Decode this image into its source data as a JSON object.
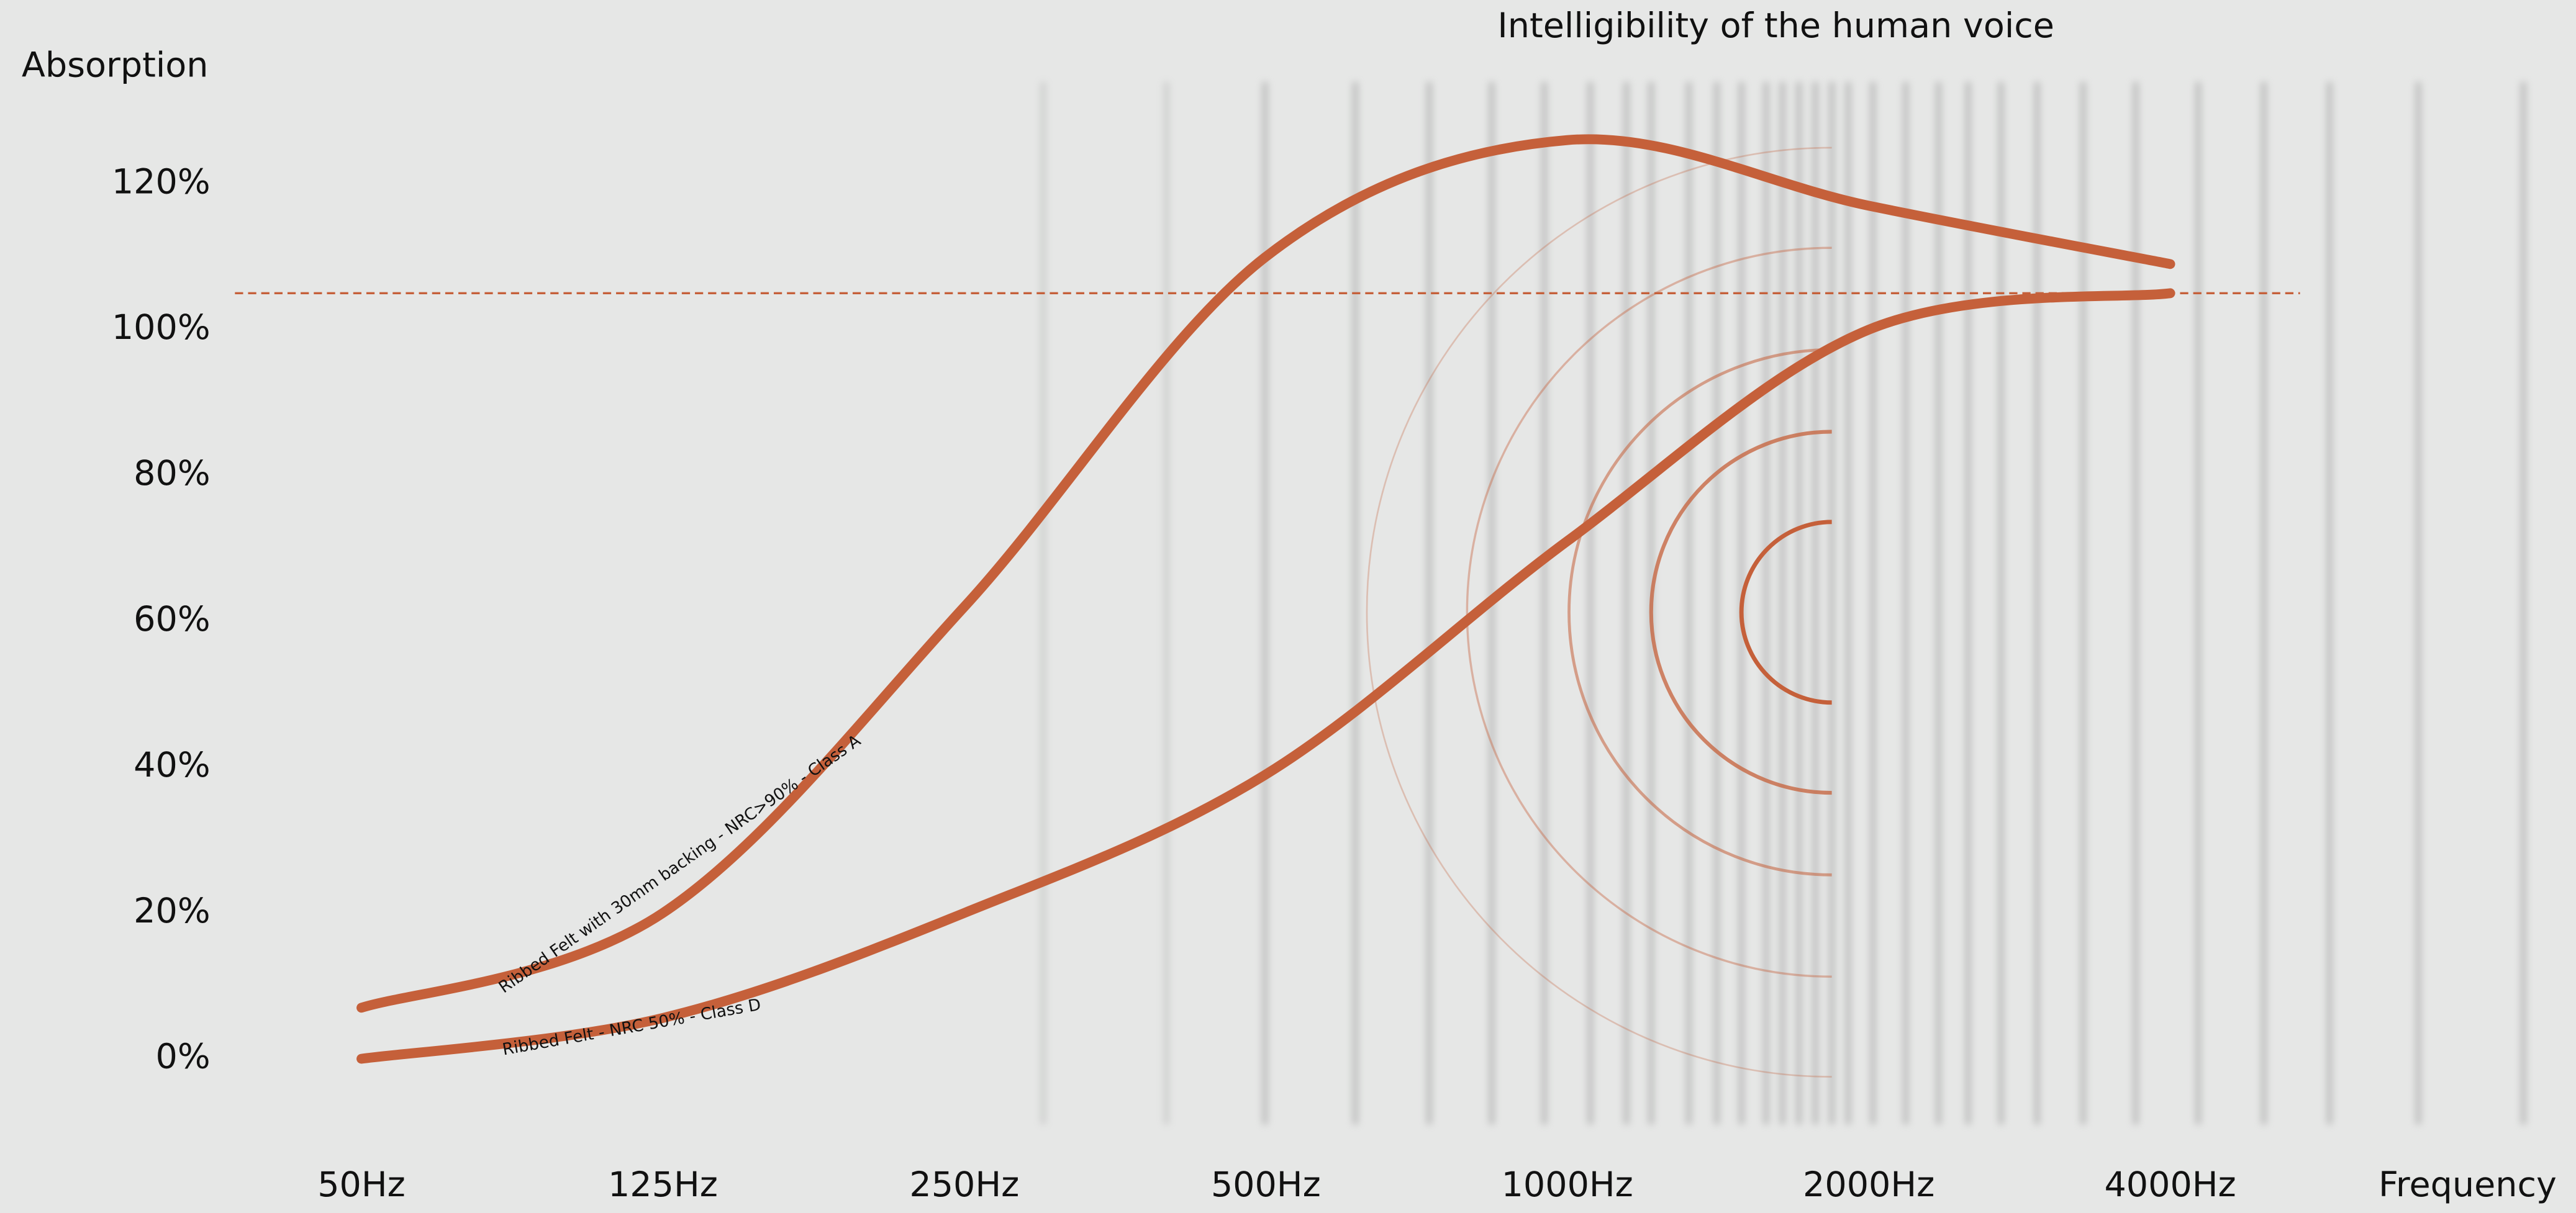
{
  "chart_data": {
    "type": "line",
    "title": "Intelligibility of the human voice",
    "y_label": "Absorption",
    "x_label": "Frequency",
    "categories": [
      "50Hz",
      "125Hz",
      "250Hz",
      "500Hz",
      "1000Hz",
      "2000Hz",
      "4000Hz"
    ],
    "series": [
      {
        "name": "Ribbed Felt with 30mm backing - NRC>90% - Class A",
        "color": "#c5603a",
        "values": [
          7,
          20,
          62,
          110,
          126,
          117,
          109
        ]
      },
      {
        "name": "Ribbed Felt - NRC 50% - Class D",
        "color": "#c5603a",
        "values": [
          0,
          5.6,
          20,
          39,
          71,
          100,
          105
        ]
      }
    ],
    "reference_line": 105,
    "ylim": [
      -18,
      140
    ],
    "yticks": [
      {
        "value": 0,
        "label": "0%"
      },
      {
        "value": 20,
        "label": "20%"
      },
      {
        "value": 40,
        "label": "40%"
      },
      {
        "value": 60,
        "label": "60%"
      },
      {
        "value": 80,
        "label": "80%"
      },
      {
        "value": 100,
        "label": "100%"
      },
      {
        "value": 120,
        "label": "120%"
      }
    ]
  }
}
